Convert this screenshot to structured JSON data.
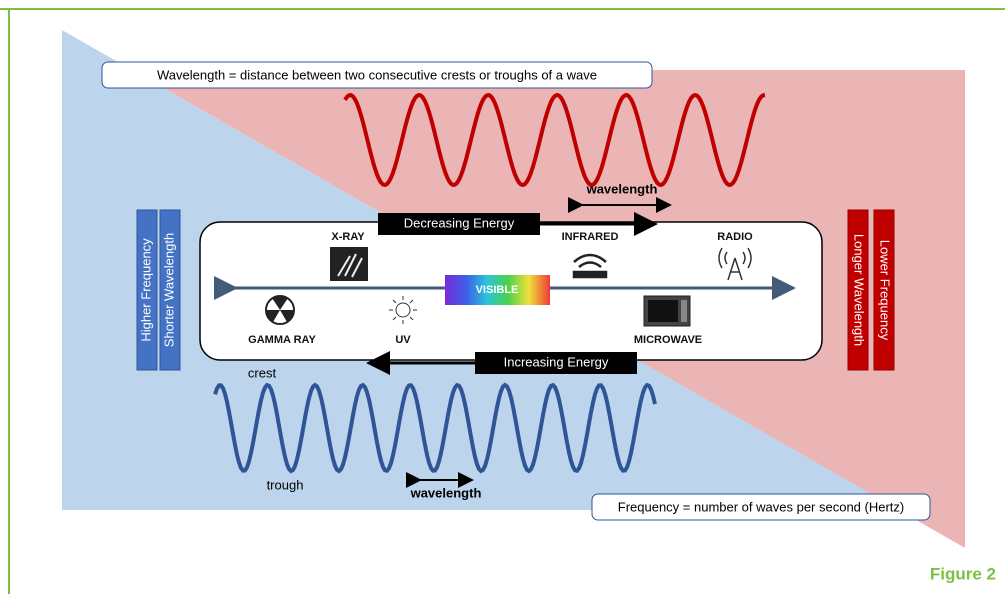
{
  "top_note": "Wavelength = distance between two consecutive crests or troughs of a wave",
  "top_wave_label": "wavelength",
  "decreasing_energy": "Decreasing Energy",
  "increasing_energy": "Increasing Energy",
  "spectrum": {
    "x_ray": "X-RAY",
    "infrared": "INFRARED",
    "radio": "RADIO",
    "visible": "VISIBLE",
    "gamma_ray": "GAMMA RAY",
    "uv": "UV",
    "microwave": "MICROWAVE"
  },
  "left_labels": [
    "Higher Frequency",
    "Shorter Wavelength"
  ],
  "right_labels": [
    "Longer Wavelength",
    "Lower Frequency"
  ],
  "bottom_wave": {
    "crest": "crest",
    "trough": "trough",
    "label": "wavelength"
  },
  "bottom_note": "Frequency = number of waves per second (Hertz)",
  "figure_label": "Figure 2"
}
